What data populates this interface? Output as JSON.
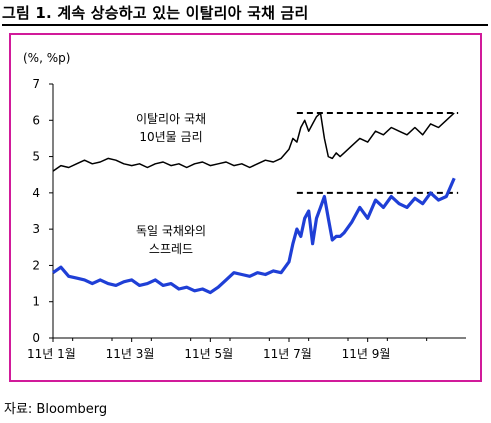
{
  "figure": {
    "title": "그림 1. 계속 상승하고 있는 이탈리아 국채 금리",
    "source": "자료: Bloomberg"
  },
  "chart_data": {
    "type": "line",
    "y_unit": "(%, %p)",
    "ylim": [
      0,
      7
    ],
    "yticks": [
      0,
      1,
      2,
      3,
      4,
      5,
      6,
      7
    ],
    "x_range": [
      0,
      10.5
    ],
    "x_ticks": [
      {
        "x": 0,
        "label": "11년 1월"
      },
      {
        "x": 2,
        "label": "11년 3월"
      },
      {
        "x": 4,
        "label": "11년 5월"
      },
      {
        "x": 6,
        "label": "11년 7월"
      },
      {
        "x": 8,
        "label": "11년 9월"
      }
    ],
    "grid": false,
    "series": [
      {
        "name": "이탈리아 국채 10년물 금리",
        "color": "#000000",
        "x": [
          0,
          0.2,
          0.4,
          0.6,
          0.8,
          1.0,
          1.2,
          1.4,
          1.6,
          1.8,
          2.0,
          2.2,
          2.4,
          2.6,
          2.8,
          3.0,
          3.2,
          3.4,
          3.6,
          3.8,
          4.0,
          4.2,
          4.4,
          4.6,
          4.8,
          5.0,
          5.2,
          5.4,
          5.6,
          5.8,
          6.0,
          6.1,
          6.2,
          6.3,
          6.4,
          6.5,
          6.6,
          6.7,
          6.8,
          6.9,
          7.0,
          7.1,
          7.2,
          7.3,
          7.4,
          7.6,
          7.8,
          8.0,
          8.2,
          8.4,
          8.6,
          8.8,
          9.0,
          9.2,
          9.4,
          9.6,
          9.8,
          10.0,
          10.2
        ],
        "values": [
          4.6,
          4.75,
          4.7,
          4.8,
          4.9,
          4.8,
          4.85,
          4.95,
          4.9,
          4.8,
          4.75,
          4.8,
          4.7,
          4.8,
          4.85,
          4.75,
          4.8,
          4.7,
          4.8,
          4.85,
          4.75,
          4.8,
          4.85,
          4.75,
          4.8,
          4.7,
          4.8,
          4.9,
          4.85,
          4.95,
          5.2,
          5.5,
          5.4,
          5.8,
          6.0,
          5.7,
          5.9,
          6.1,
          6.2,
          5.5,
          5.0,
          4.95,
          5.1,
          5.0,
          5.1,
          5.3,
          5.5,
          5.4,
          5.7,
          5.6,
          5.8,
          5.7,
          5.6,
          5.8,
          5.6,
          5.9,
          5.8,
          6.0,
          6.2
        ]
      },
      {
        "name": "독일 국채와의 스프레드",
        "color": "#1f3fd6",
        "x": [
          0,
          0.2,
          0.4,
          0.6,
          0.8,
          1.0,
          1.2,
          1.4,
          1.6,
          1.8,
          2.0,
          2.2,
          2.4,
          2.6,
          2.8,
          3.0,
          3.2,
          3.4,
          3.6,
          3.8,
          4.0,
          4.2,
          4.4,
          4.6,
          4.8,
          5.0,
          5.2,
          5.4,
          5.6,
          5.8,
          6.0,
          6.1,
          6.2,
          6.3,
          6.4,
          6.5,
          6.6,
          6.7,
          6.8,
          6.9,
          7.0,
          7.1,
          7.2,
          7.3,
          7.4,
          7.6,
          7.8,
          8.0,
          8.2,
          8.4,
          8.6,
          8.8,
          9.0,
          9.2,
          9.4,
          9.6,
          9.8,
          10.0,
          10.2
        ],
        "values": [
          1.8,
          1.95,
          1.7,
          1.65,
          1.6,
          1.5,
          1.6,
          1.5,
          1.45,
          1.55,
          1.6,
          1.45,
          1.5,
          1.6,
          1.45,
          1.5,
          1.35,
          1.4,
          1.3,
          1.35,
          1.25,
          1.4,
          1.6,
          1.8,
          1.75,
          1.7,
          1.8,
          1.75,
          1.85,
          1.8,
          2.1,
          2.6,
          3.0,
          2.8,
          3.3,
          3.5,
          2.6,
          3.3,
          3.6,
          3.9,
          3.3,
          2.7,
          2.8,
          2.8,
          2.9,
          3.2,
          3.6,
          3.3,
          3.8,
          3.6,
          3.9,
          3.7,
          3.6,
          3.85,
          3.7,
          4.0,
          3.8,
          3.9,
          4.4
        ]
      }
    ],
    "reference_lines": [
      {
        "y": 6.2,
        "x_start": 6.2,
        "x_end": 10.3,
        "style": "dashed"
      },
      {
        "y": 4.0,
        "x_start": 6.2,
        "x_end": 10.3,
        "style": "dashed"
      }
    ],
    "annotations": [
      {
        "lines": [
          "이탈리아 국채",
          "10년물 금리"
        ],
        "anchor": "above-black-line"
      },
      {
        "lines": [
          "독일 국채와의",
          "스프레드"
        ],
        "anchor": "above-blue-line"
      }
    ]
  }
}
